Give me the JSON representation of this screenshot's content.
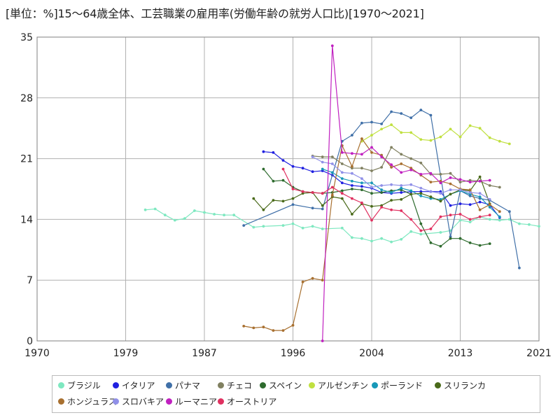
{
  "title": "[単位：%]15～64歳全体、工芸職業の雇用率(労働年齢の就労人口比)[1970～2021]",
  "chart_data": {
    "type": "line",
    "xlim": [
      1970,
      2021
    ],
    "ylim": [
      0,
      35
    ],
    "x_ticks": [
      "1970",
      "1979",
      "1987",
      "1996",
      "2004",
      "2013",
      "2021"
    ],
    "y_ticks": [
      "0",
      "7",
      "14",
      "21",
      "28",
      "35"
    ],
    "grid": true,
    "legend_position": "bottom",
    "series": [
      {
        "name": "ブラジル",
        "color": "#7ee8c0",
        "points": [
          [
            1981,
            15.1
          ],
          [
            1982,
            15.2
          ],
          [
            1983,
            14.5
          ],
          [
            1984,
            13.9
          ],
          [
            1985,
            14.1
          ],
          [
            1986,
            15.0
          ],
          [
            1987,
            14.8
          ],
          [
            1988,
            14.6
          ],
          [
            1989,
            14.5
          ],
          [
            1990,
            14.5
          ],
          [
            1992,
            13.1
          ],
          [
            1993,
            13.2
          ],
          [
            1995,
            13.3
          ],
          [
            1996,
            13.5
          ],
          [
            1997,
            13.0
          ],
          [
            1998,
            13.2
          ],
          [
            1999,
            12.9
          ],
          [
            2001,
            13.0
          ],
          [
            2002,
            11.9
          ],
          [
            2003,
            11.8
          ],
          [
            2004,
            11.5
          ],
          [
            2005,
            11.8
          ],
          [
            2006,
            11.4
          ],
          [
            2007,
            11.7
          ],
          [
            2008,
            12.6
          ],
          [
            2009,
            12.3
          ],
          [
            2011,
            12.5
          ],
          [
            2012,
            12.7
          ],
          [
            2013,
            13.9
          ],
          [
            2014,
            13.7
          ],
          [
            2015,
            14.3
          ],
          [
            2016,
            14.0
          ],
          [
            2017,
            13.9
          ],
          [
            2018,
            14.0
          ],
          [
            2019,
            13.5
          ],
          [
            2020,
            13.4
          ],
          [
            2021,
            13.2
          ]
        ]
      },
      {
        "name": "イタリア",
        "color": "#2020e0",
        "points": [
          [
            1993,
            21.8
          ],
          [
            1994,
            21.7
          ],
          [
            1995,
            20.8
          ],
          [
            1996,
            20.1
          ],
          [
            1997,
            19.9
          ],
          [
            1998,
            19.5
          ],
          [
            1999,
            19.6
          ],
          [
            2000,
            19.1
          ],
          [
            2001,
            18.2
          ],
          [
            2002,
            17.9
          ],
          [
            2003,
            17.8
          ],
          [
            2004,
            17.6
          ],
          [
            2005,
            17.1
          ],
          [
            2006,
            17.0
          ],
          [
            2007,
            17.1
          ],
          [
            2008,
            17.2
          ],
          [
            2009,
            17.2
          ],
          [
            2010,
            17.2
          ],
          [
            2011,
            17.2
          ],
          [
            2012,
            15.6
          ],
          [
            2013,
            15.8
          ],
          [
            2014,
            15.7
          ],
          [
            2015,
            16.0
          ],
          [
            2016,
            15.7
          ],
          [
            2017,
            14.2
          ]
        ]
      },
      {
        "name": "パナマ",
        "color": "#4070a8",
        "points": [
          [
            1991,
            13.3
          ],
          [
            1996,
            15.7
          ],
          [
            1998,
            15.3
          ],
          [
            1999,
            15.2
          ],
          [
            2001,
            23.0
          ],
          [
            2002,
            23.7
          ],
          [
            2003,
            25.1
          ],
          [
            2004,
            25.2
          ],
          [
            2005,
            25.0
          ],
          [
            2006,
            26.4
          ],
          [
            2007,
            26.2
          ],
          [
            2008,
            25.7
          ],
          [
            2009,
            26.6
          ],
          [
            2010,
            26.0
          ],
          [
            2012,
            12.0
          ],
          [
            2013,
            17.3
          ],
          [
            2014,
            16.7
          ],
          [
            2015,
            16.4
          ],
          [
            2016,
            16.2
          ],
          [
            2018,
            14.9
          ],
          [
            2019,
            8.4
          ]
        ]
      },
      {
        "name": "チェコ",
        "color": "#808060",
        "points": [
          [
            1998,
            21.3
          ],
          [
            1999,
            21.2
          ],
          [
            2000,
            21.2
          ],
          [
            2001,
            20.4
          ],
          [
            2002,
            19.9
          ],
          [
            2003,
            19.9
          ],
          [
            2004,
            19.6
          ],
          [
            2005,
            20.0
          ],
          [
            2006,
            22.3
          ],
          [
            2007,
            21.5
          ],
          [
            2008,
            21.0
          ],
          [
            2009,
            20.5
          ],
          [
            2010,
            19.2
          ],
          [
            2011,
            19.2
          ],
          [
            2012,
            19.3
          ],
          [
            2013,
            18.3
          ],
          [
            2014,
            18.5
          ],
          [
            2015,
            18.4
          ],
          [
            2016,
            17.9
          ],
          [
            2017,
            17.7
          ]
        ]
      },
      {
        "name": "スペイン",
        "color": "#2e6b2e",
        "points": [
          [
            1993,
            19.8
          ],
          [
            1994,
            18.4
          ],
          [
            1995,
            18.5
          ],
          [
            1996,
            17.7
          ],
          [
            1997,
            17.2
          ],
          [
            1998,
            17.1
          ],
          [
            1999,
            17.0
          ],
          [
            2000,
            17.1
          ],
          [
            2001,
            17.3
          ],
          [
            2002,
            17.5
          ],
          [
            2003,
            17.4
          ],
          [
            2004,
            17.0
          ],
          [
            2005,
            17.1
          ],
          [
            2006,
            17.3
          ],
          [
            2007,
            17.4
          ],
          [
            2008,
            16.9
          ],
          [
            2009,
            13.5
          ],
          [
            2010,
            11.3
          ],
          [
            2011,
            10.9
          ],
          [
            2012,
            11.8
          ],
          [
            2013,
            11.8
          ],
          [
            2014,
            11.3
          ],
          [
            2015,
            11.0
          ],
          [
            2016,
            11.2
          ]
        ]
      },
      {
        "name": "アルゼンチン",
        "color": "#c0e040",
        "points": [
          [
            2003,
            23.0
          ],
          [
            2004,
            23.7
          ],
          [
            2005,
            24.4
          ],
          [
            2006,
            24.9
          ],
          [
            2007,
            24.0
          ],
          [
            2008,
            24.0
          ],
          [
            2009,
            23.2
          ],
          [
            2010,
            23.1
          ],
          [
            2011,
            23.5
          ],
          [
            2012,
            24.4
          ],
          [
            2013,
            23.5
          ],
          [
            2014,
            24.8
          ],
          [
            2015,
            24.5
          ],
          [
            2016,
            23.4
          ],
          [
            2017,
            23.0
          ],
          [
            2018,
            22.7
          ]
        ]
      },
      {
        "name": "ポーランド",
        "color": "#1898b8",
        "points": [
          [
            1999,
            19.8
          ],
          [
            2000,
            19.4
          ],
          [
            2001,
            18.7
          ],
          [
            2002,
            18.4
          ],
          [
            2003,
            18.2
          ],
          [
            2004,
            18.2
          ],
          [
            2005,
            17.4
          ],
          [
            2006,
            17.1
          ],
          [
            2007,
            17.6
          ],
          [
            2008,
            17.3
          ],
          [
            2009,
            16.7
          ],
          [
            2010,
            16.4
          ],
          [
            2011,
            16.3
          ],
          [
            2012,
            16.9
          ],
          [
            2013,
            17.3
          ],
          [
            2014,
            16.9
          ],
          [
            2015,
            16.6
          ],
          [
            2016,
            15.4
          ],
          [
            2017,
            14.3
          ]
        ]
      },
      {
        "name": "スリランカ",
        "color": "#4a6a1a",
        "points": [
          [
            1992,
            16.4
          ],
          [
            1993,
            15.1
          ],
          [
            1994,
            16.2
          ],
          [
            1995,
            16.1
          ],
          [
            1996,
            16.4
          ],
          [
            1997,
            17.0
          ],
          [
            1998,
            17.1
          ],
          [
            1999,
            15.6
          ],
          [
            2000,
            16.6
          ],
          [
            2001,
            16.4
          ],
          [
            2002,
            14.6
          ],
          [
            2003,
            15.8
          ],
          [
            2004,
            15.5
          ],
          [
            2005,
            15.6
          ],
          [
            2006,
            16.2
          ],
          [
            2007,
            16.3
          ],
          [
            2008,
            16.9
          ],
          [
            2009,
            17.0
          ],
          [
            2010,
            16.6
          ],
          [
            2011,
            16.1
          ],
          [
            2012,
            16.9
          ],
          [
            2013,
            17.4
          ],
          [
            2014,
            17.3
          ],
          [
            2015,
            18.9
          ],
          [
            2016,
            15.8
          ]
        ]
      },
      {
        "name": "ホンジュラス",
        "color": "#a87030",
        "points": [
          [
            1991,
            1.7
          ],
          [
            1992,
            1.5
          ],
          [
            1993,
            1.6
          ],
          [
            1994,
            1.2
          ],
          [
            1995,
            1.2
          ],
          [
            1996,
            1.8
          ],
          [
            1997,
            6.8
          ],
          [
            1998,
            7.2
          ],
          [
            1999,
            7.0
          ],
          [
            2000,
            16.8
          ],
          [
            2001,
            22.5
          ],
          [
            2002,
            20.1
          ],
          [
            2003,
            23.3
          ],
          [
            2004,
            21.7
          ],
          [
            2005,
            21.4
          ],
          [
            2006,
            20.0
          ],
          [
            2007,
            20.4
          ],
          [
            2008,
            19.9
          ],
          [
            2009,
            19.1
          ],
          [
            2010,
            18.3
          ],
          [
            2011,
            18.4
          ],
          [
            2012,
            18.1
          ],
          [
            2013,
            17.5
          ],
          [
            2014,
            17.4
          ],
          [
            2015,
            15.1
          ],
          [
            2016,
            15.7
          ],
          [
            2017,
            14.9
          ]
        ]
      },
      {
        "name": "スロバキア",
        "color": "#9090e8",
        "points": [
          [
            1998,
            21.2
          ],
          [
            1999,
            20.6
          ],
          [
            2000,
            20.4
          ],
          [
            2001,
            19.4
          ],
          [
            2002,
            19.3
          ],
          [
            2003,
            18.7
          ],
          [
            2004,
            17.7
          ],
          [
            2005,
            17.9
          ],
          [
            2006,
            18.0
          ],
          [
            2007,
            17.9
          ],
          [
            2008,
            18.0
          ],
          [
            2009,
            17.6
          ],
          [
            2010,
            17.2
          ],
          [
            2011,
            17.0
          ],
          [
            2012,
            17.4
          ],
          [
            2013,
            17.4
          ],
          [
            2014,
            17.1
          ],
          [
            2015,
            17.0
          ],
          [
            2016,
            16.3
          ]
        ]
      },
      {
        "name": "ルーマニア",
        "color": "#c020c0",
        "points": [
          [
            1999,
            0.0
          ],
          [
            2000,
            34.0
          ],
          [
            2001,
            21.7
          ],
          [
            2002,
            21.6
          ],
          [
            2003,
            21.5
          ],
          [
            2004,
            22.3
          ],
          [
            2005,
            21.2
          ],
          [
            2006,
            20.3
          ],
          [
            2007,
            19.4
          ],
          [
            2008,
            19.7
          ],
          [
            2009,
            19.2
          ],
          [
            2010,
            19.3
          ],
          [
            2011,
            18.2
          ],
          [
            2012,
            18.8
          ],
          [
            2013,
            18.6
          ],
          [
            2014,
            18.3
          ],
          [
            2015,
            18.4
          ],
          [
            2016,
            18.5
          ]
        ]
      },
      {
        "name": "オーストリア",
        "color": "#e03060",
        "points": [
          [
            1995,
            19.8
          ],
          [
            1996,
            17.5
          ],
          [
            1997,
            17.2
          ],
          [
            1998,
            17.1
          ],
          [
            1999,
            17.0
          ],
          [
            2000,
            17.7
          ],
          [
            2001,
            17.0
          ],
          [
            2002,
            16.4
          ],
          [
            2003,
            15.9
          ],
          [
            2004,
            13.9
          ],
          [
            2005,
            15.4
          ],
          [
            2006,
            15.1
          ],
          [
            2007,
            15.0
          ],
          [
            2008,
            14.0
          ],
          [
            2009,
            12.7
          ],
          [
            2010,
            12.9
          ],
          [
            2011,
            14.3
          ],
          [
            2012,
            14.5
          ],
          [
            2013,
            14.6
          ],
          [
            2014,
            14.0
          ],
          [
            2015,
            14.3
          ],
          [
            2016,
            14.5
          ]
        ]
      }
    ]
  }
}
